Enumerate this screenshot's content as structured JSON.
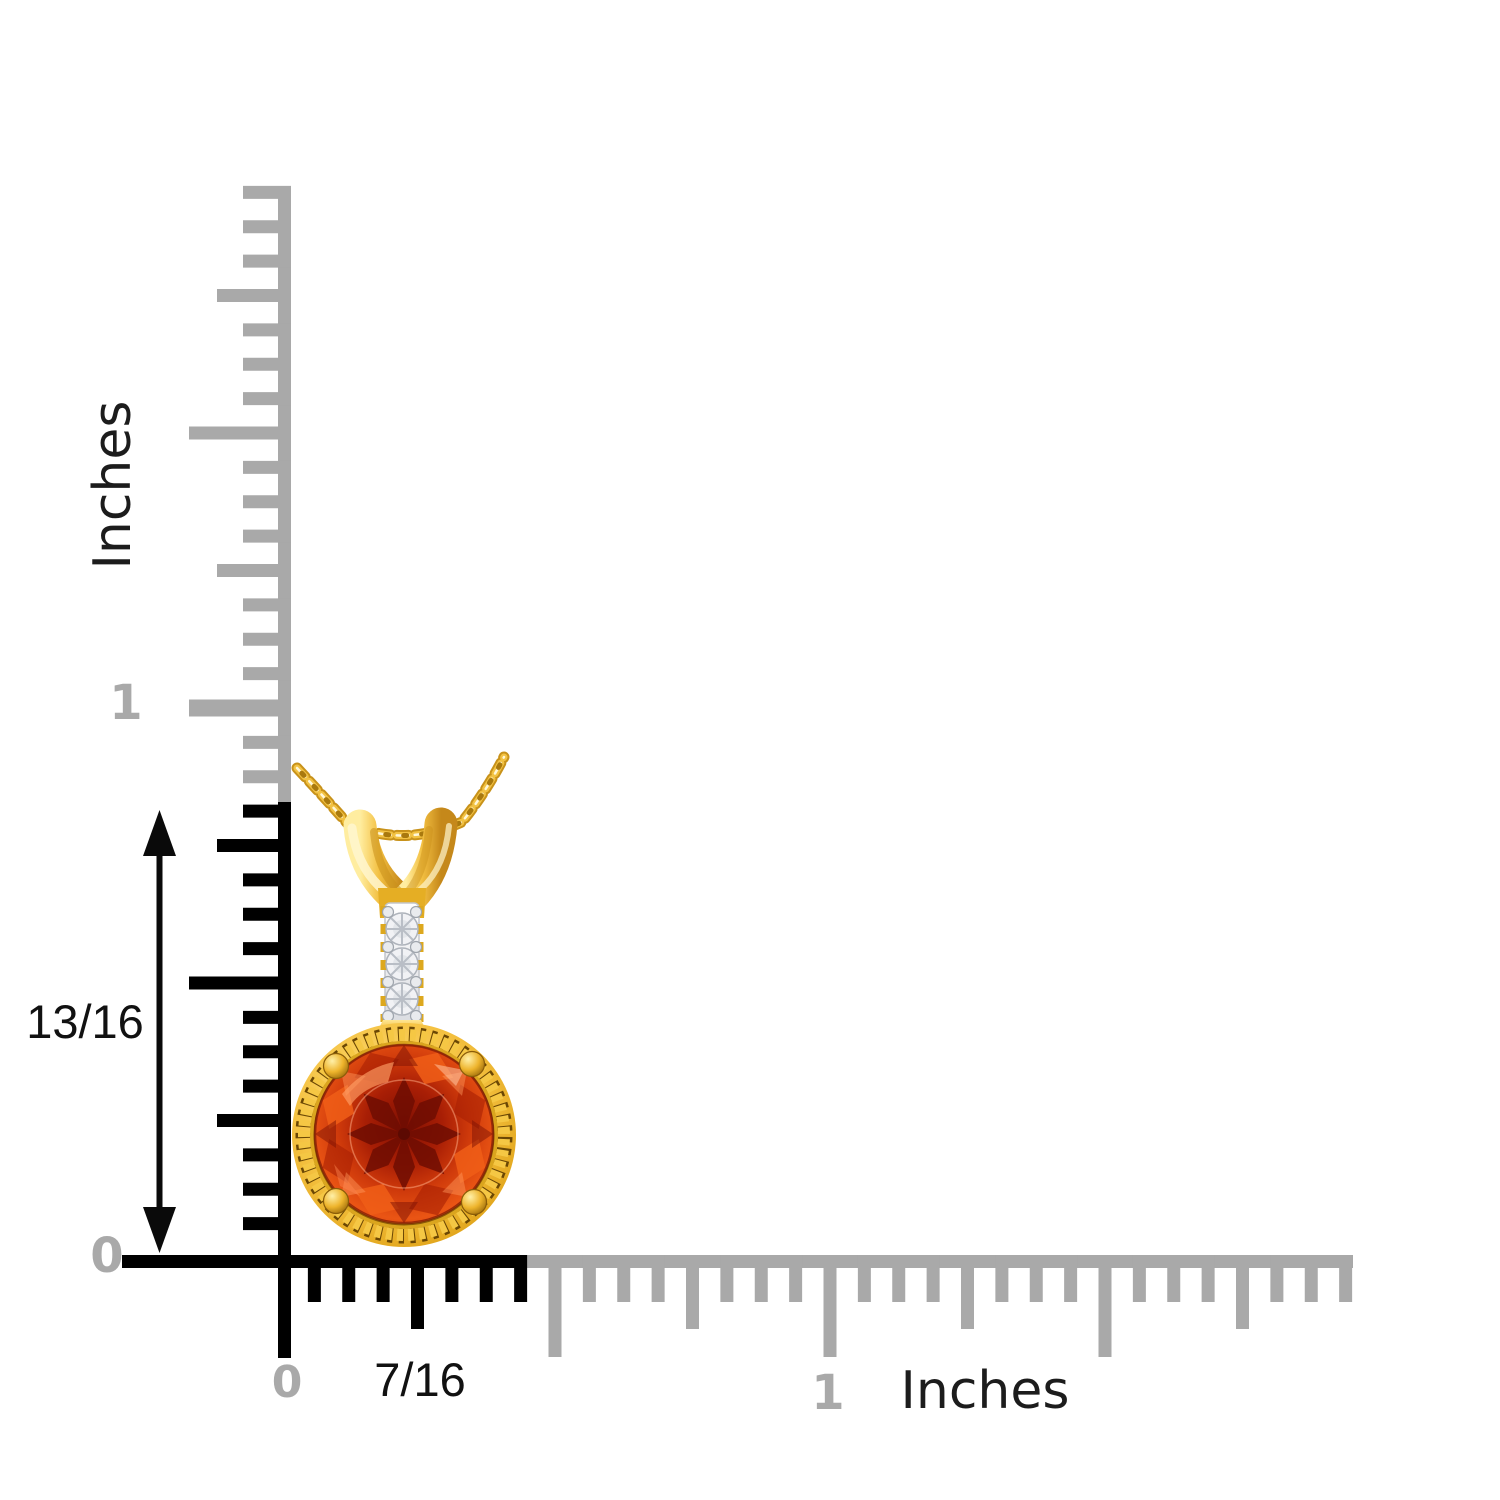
{
  "page": {
    "background_color": "#ffffff",
    "description": "Pendant size reference diagram with inch rulers"
  },
  "rulers": {
    "inactive_color": "#a9a9a9",
    "active_color": "#000000",
    "vertical": {
      "unit_label": "Inches",
      "inch_label": "1",
      "zero_label": "0"
    },
    "horizontal": {
      "unit_label": "Inches",
      "inch_label": "1",
      "zero_label": "0"
    }
  },
  "measurements": {
    "height_label": "13/16",
    "width_label": "7/16"
  },
  "pendant": {
    "metal_color": "#eeb42c",
    "metal_light_color": "#ffe693",
    "metal_dark_color": "#a4700e",
    "gem_color": "#d8430e",
    "gem_dark_color": "#7e1003",
    "diamond_color": "#f1f2f5"
  }
}
